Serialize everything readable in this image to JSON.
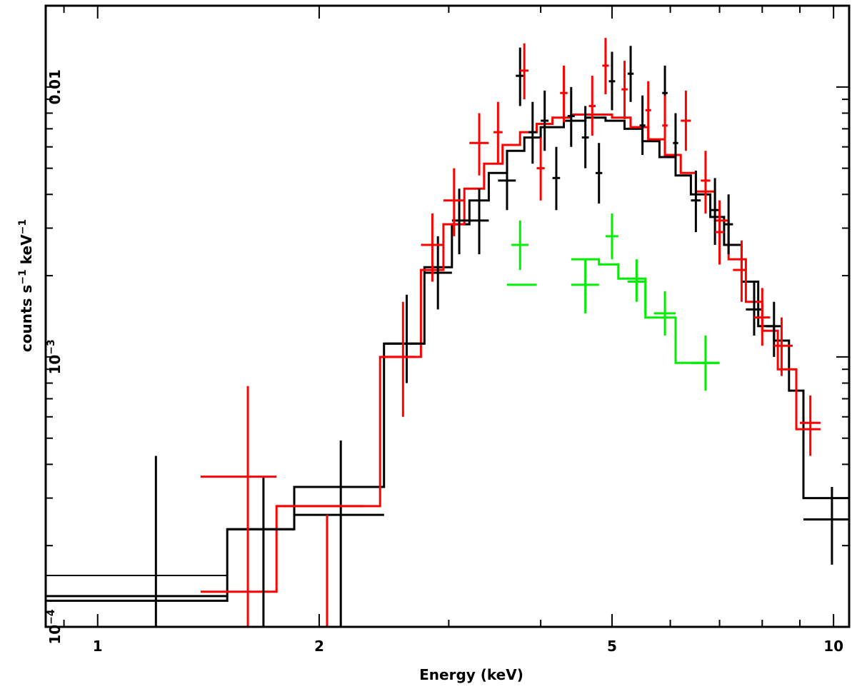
{
  "chart_data": {
    "type": "scatter",
    "title": "",
    "xlabel": "Energy (keV)",
    "ylabel_parts": {
      "a": "counts s",
      "b": "−1",
      "c": " keV",
      "d": "−1"
    },
    "x_scale": "log",
    "y_scale": "log",
    "xlim": [
      0.85,
      10.5
    ],
    "ylim": [
      0.0001,
      0.02
    ],
    "grid": false,
    "x_ticks": [
      {
        "value": 1,
        "label": "1"
      },
      {
        "value": 2,
        "label": "2"
      },
      {
        "value": 5,
        "label": "5"
      },
      {
        "value": 10,
        "label": "10"
      }
    ],
    "y_ticks": [
      {
        "value": 0.0001,
        "base": "10",
        "exp": "−4"
      },
      {
        "value": 0.001,
        "base": "10",
        "exp": "−3"
      },
      {
        "value": 0.01,
        "label": "0.01"
      }
    ],
    "series": [
      {
        "color": "#000000",
        "data": [
          {
            "x": 1.2,
            "xlo": 0.85,
            "xhi": 1.5,
            "y": 0.00013,
            "ylo": 0.0001,
            "yhi": 0.00043
          },
          {
            "x": 1.68,
            "xlo": 1.5,
            "xhi": 1.85,
            "y": 0.00023,
            "ylo": 0.0001,
            "yhi": 0.00036
          },
          {
            "x": 2.14,
            "xlo": 1.85,
            "xhi": 2.45,
            "y": 0.00026,
            "ylo": 0.0001,
            "yhi": 0.00049
          },
          {
            "x": 2.63,
            "xlo": 2.45,
            "xhi": 2.78,
            "y": 0.00112,
            "ylo": 0.0008,
            "yhi": 0.0017
          },
          {
            "x": 2.9,
            "xlo": 2.78,
            "xhi": 3.03,
            "y": 0.00205,
            "ylo": 0.0015,
            "yhi": 0.0028
          },
          {
            "x": 3.1,
            "xlo": 3.03,
            "xhi": 3.2,
            "y": 0.0032,
            "ylo": 0.0024,
            "yhi": 0.0042
          },
          {
            "x": 3.3,
            "xlo": 3.2,
            "xhi": 3.4,
            "y": 0.0032,
            "ylo": 0.0024,
            "yhi": 0.0042
          },
          {
            "x": 3.6,
            "xlo": 3.5,
            "xhi": 3.7,
            "y": 0.0045,
            "ylo": 0.0035,
            "yhi": 0.0058
          },
          {
            "x": 3.75,
            "xlo": 3.7,
            "xhi": 3.8,
            "y": 0.011,
            "ylo": 0.0085,
            "yhi": 0.014
          },
          {
            "x": 3.9,
            "xlo": 3.85,
            "xhi": 3.95,
            "y": 0.0068,
            "ylo": 0.0052,
            "yhi": 0.0088
          },
          {
            "x": 4.05,
            "xlo": 4.0,
            "xhi": 4.1,
            "y": 0.0075,
            "ylo": 0.0058,
            "yhi": 0.0097
          },
          {
            "x": 4.2,
            "xlo": 4.15,
            "xhi": 4.25,
            "y": 0.0046,
            "ylo": 0.0035,
            "yhi": 0.006
          },
          {
            "x": 4.4,
            "xlo": 4.35,
            "xhi": 4.45,
            "y": 0.0078,
            "ylo": 0.006,
            "yhi": 0.01
          },
          {
            "x": 4.6,
            "xlo": 4.55,
            "xhi": 4.65,
            "y": 0.0065,
            "ylo": 0.005,
            "yhi": 0.0085
          },
          {
            "x": 4.8,
            "xlo": 4.75,
            "xhi": 4.85,
            "y": 0.0048,
            "ylo": 0.0037,
            "yhi": 0.0062
          },
          {
            "x": 5.0,
            "xlo": 4.95,
            "xhi": 5.05,
            "y": 0.0105,
            "ylo": 0.0082,
            "yhi": 0.0135
          },
          {
            "x": 5.3,
            "xlo": 5.25,
            "xhi": 5.35,
            "y": 0.0112,
            "ylo": 0.0088,
            "yhi": 0.0142
          },
          {
            "x": 5.5,
            "xlo": 5.45,
            "xhi": 5.55,
            "y": 0.0072,
            "ylo": 0.0056,
            "yhi": 0.0093
          },
          {
            "x": 5.9,
            "xlo": 5.85,
            "xhi": 5.95,
            "y": 0.0095,
            "ylo": 0.0074,
            "yhi": 0.012
          },
          {
            "x": 6.1,
            "xlo": 6.05,
            "xhi": 6.15,
            "y": 0.0062,
            "ylo": 0.0048,
            "yhi": 0.008
          },
          {
            "x": 6.5,
            "xlo": 6.4,
            "xhi": 6.6,
            "y": 0.0038,
            "ylo": 0.0029,
            "yhi": 0.0049
          },
          {
            "x": 6.9,
            "xlo": 6.8,
            "xhi": 7.0,
            "y": 0.0035,
            "ylo": 0.0026,
            "yhi": 0.0046
          },
          {
            "x": 7.2,
            "xlo": 7.1,
            "xhi": 7.3,
            "y": 0.0031,
            "ylo": 0.0024,
            "yhi": 0.004
          },
          {
            "x": 7.8,
            "xlo": 7.6,
            "xhi": 8.0,
            "y": 0.0015,
            "ylo": 0.0012,
            "yhi": 0.0019
          },
          {
            "x": 8.3,
            "xlo": 8.1,
            "xhi": 8.5,
            "y": 0.0013,
            "ylo": 0.001,
            "yhi": 0.0016
          },
          {
            "x": 9.95,
            "xlo": 9.1,
            "xhi": 10.5,
            "y": 0.00025,
            "ylo": 0.00017,
            "yhi": 0.00033
          }
        ]
      },
      {
        "color": "#ff0000",
        "data": [
          {
            "x": 1.6,
            "xlo": 1.38,
            "xhi": 1.75,
            "y": 0.00036,
            "ylo": 0.0001,
            "yhi": 0.00078
          },
          {
            "x": 2.05,
            "xlo": 1.75,
            "xhi": 2.3,
            "y": 0.00028,
            "ylo": 0.0001,
            "yhi": 0.00026
          },
          {
            "x": 2.6,
            "xlo": 2.45,
            "xhi": 2.7,
            "y": 0.001,
            "ylo": 0.0006,
            "yhi": 0.0016
          },
          {
            "x": 2.85,
            "xlo": 2.75,
            "xhi": 2.95,
            "y": 0.0026,
            "ylo": 0.0019,
            "yhi": 0.0034
          },
          {
            "x": 3.05,
            "xlo": 2.95,
            "xhi": 3.15,
            "y": 0.0038,
            "ylo": 0.0028,
            "yhi": 0.005
          },
          {
            "x": 3.3,
            "xlo": 3.2,
            "xhi": 3.4,
            "y": 0.0062,
            "ylo": 0.0047,
            "yhi": 0.008
          },
          {
            "x": 3.5,
            "xlo": 3.45,
            "xhi": 3.55,
            "y": 0.0068,
            "ylo": 0.0052,
            "yhi": 0.0088
          },
          {
            "x": 3.8,
            "xlo": 3.75,
            "xhi": 3.85,
            "y": 0.0115,
            "ylo": 0.009,
            "yhi": 0.0145
          },
          {
            "x": 4.0,
            "xlo": 3.95,
            "xhi": 4.05,
            "y": 0.005,
            "ylo": 0.0038,
            "yhi": 0.0065
          },
          {
            "x": 4.3,
            "xlo": 4.25,
            "xhi": 4.35,
            "y": 0.0095,
            "ylo": 0.0074,
            "yhi": 0.012
          },
          {
            "x": 4.7,
            "xlo": 4.65,
            "xhi": 4.75,
            "y": 0.0085,
            "ylo": 0.0066,
            "yhi": 0.011
          },
          {
            "x": 4.9,
            "xlo": 4.85,
            "xhi": 4.95,
            "y": 0.012,
            "ylo": 0.0094,
            "yhi": 0.0152
          },
          {
            "x": 5.2,
            "xlo": 5.15,
            "xhi": 5.25,
            "y": 0.0098,
            "ylo": 0.0076,
            "yhi": 0.0125
          },
          {
            "x": 5.6,
            "xlo": 5.55,
            "xhi": 5.65,
            "y": 0.0082,
            "ylo": 0.0064,
            "yhi": 0.0105
          },
          {
            "x": 5.9,
            "xlo": 5.85,
            "xhi": 5.95,
            "y": 0.0072,
            "ylo": 0.0056,
            "yhi": 0.0093
          },
          {
            "x": 6.3,
            "xlo": 6.2,
            "xhi": 6.4,
            "y": 0.0075,
            "ylo": 0.0058,
            "yhi": 0.0097
          },
          {
            "x": 6.7,
            "xlo": 6.6,
            "xhi": 6.8,
            "y": 0.0045,
            "ylo": 0.0034,
            "yhi": 0.0058
          },
          {
            "x": 7.0,
            "xlo": 6.9,
            "xhi": 7.1,
            "y": 0.0029,
            "ylo": 0.0022,
            "yhi": 0.0038
          },
          {
            "x": 7.5,
            "xlo": 7.3,
            "xhi": 7.6,
            "y": 0.0021,
            "ylo": 0.0016,
            "yhi": 0.0027
          },
          {
            "x": 8.0,
            "xlo": 7.8,
            "xhi": 8.2,
            "y": 0.0014,
            "ylo": 0.0011,
            "yhi": 0.0018
          },
          {
            "x": 8.5,
            "xlo": 8.3,
            "xhi": 8.8,
            "y": 0.0011,
            "ylo": 0.00085,
            "yhi": 0.0014
          },
          {
            "x": 9.3,
            "xlo": 9.0,
            "xhi": 9.6,
            "y": 0.00057,
            "ylo": 0.00043,
            "yhi": 0.00072
          }
        ]
      },
      {
        "color": "#00ee00",
        "data": [
          {
            "x": 3.75,
            "xlo": 3.65,
            "xhi": 3.85,
            "y": 0.0026,
            "ylo": 0.0021,
            "yhi": 0.0032
          },
          {
            "x": 4.6,
            "xlo": 4.4,
            "xhi": 4.8,
            "y": 0.00185,
            "ylo": 0.00145,
            "yhi": 0.0023
          },
          {
            "x": 5.0,
            "xlo": 4.9,
            "xhi": 5.1,
            "y": 0.0028,
            "ylo": 0.0023,
            "yhi": 0.0034
          },
          {
            "x": 5.4,
            "xlo": 5.25,
            "xhi": 5.55,
            "y": 0.0019,
            "ylo": 0.0016,
            "yhi": 0.0023
          },
          {
            "x": 5.9,
            "xlo": 5.7,
            "xhi": 6.1,
            "y": 0.00145,
            "ylo": 0.0012,
            "yhi": 0.00175
          },
          {
            "x": 6.7,
            "xlo": 6.4,
            "xhi": 7.0,
            "y": 0.00095,
            "ylo": 0.00075,
            "yhi": 0.0012
          }
        ]
      }
    ],
    "model_steps": [
      {
        "color": "#000000",
        "points": [
          [
            0.85,
            0.000125
          ],
          [
            1.5,
            0.000125
          ],
          [
            1.5,
            0.00023
          ],
          [
            1.85,
            0.00023
          ],
          [
            1.85,
            0.00033
          ],
          [
            2.45,
            0.00033
          ],
          [
            2.45,
            0.00112
          ],
          [
            2.78,
            0.00112
          ],
          [
            2.78,
            0.00215
          ],
          [
            3.03,
            0.00215
          ],
          [
            3.03,
            0.0031
          ],
          [
            3.2,
            0.0031
          ],
          [
            3.2,
            0.0038
          ],
          [
            3.4,
            0.0038
          ],
          [
            3.4,
            0.0048
          ],
          [
            3.6,
            0.0048
          ],
          [
            3.6,
            0.0058
          ],
          [
            3.8,
            0.0058
          ],
          [
            3.8,
            0.0065
          ],
          [
            4.0,
            0.0065
          ],
          [
            4.0,
            0.0071
          ],
          [
            4.3,
            0.0071
          ],
          [
            4.3,
            0.0075
          ],
          [
            4.6,
            0.0075
          ],
          [
            4.6,
            0.0077
          ],
          [
            4.9,
            0.0077
          ],
          [
            4.9,
            0.0075
          ],
          [
            5.2,
            0.0075
          ],
          [
            5.2,
            0.007
          ],
          [
            5.5,
            0.007
          ],
          [
            5.5,
            0.0063
          ],
          [
            5.8,
            0.0063
          ],
          [
            5.8,
            0.0055
          ],
          [
            6.1,
            0.0055
          ],
          [
            6.1,
            0.0047
          ],
          [
            6.4,
            0.0047
          ],
          [
            6.4,
            0.004
          ],
          [
            6.8,
            0.004
          ],
          [
            6.8,
            0.0033
          ],
          [
            7.1,
            0.0033
          ],
          [
            7.1,
            0.0026
          ],
          [
            7.5,
            0.0026
          ],
          [
            7.5,
            0.0019
          ],
          [
            7.9,
            0.0019
          ],
          [
            7.9,
            0.0013
          ],
          [
            8.3,
            0.0013
          ],
          [
            8.3,
            0.00115
          ],
          [
            8.7,
            0.00115
          ],
          [
            8.7,
            0.00075
          ],
          [
            9.1,
            0.00075
          ],
          [
            9.1,
            0.0003
          ],
          [
            10.5,
            0.0003
          ]
        ]
      },
      {
        "color": "#000000",
        "points": [
          [
            0.85,
            0.000155
          ],
          [
            1.5,
            0.000155
          ],
          [
            1.5,
            0.00023
          ],
          [
            1.85,
            0.00023
          ],
          [
            1.85,
            0.00026
          ],
          [
            2.45,
            0.00026
          ]
        ]
      },
      {
        "color": "#ff0000",
        "points": [
          [
            1.38,
            0.000135
          ],
          [
            1.75,
            0.000135
          ],
          [
            1.75,
            0.00028
          ],
          [
            2.42,
            0.00028
          ],
          [
            2.42,
            0.001
          ],
          [
            2.75,
            0.001
          ],
          [
            2.75,
            0.0021
          ],
          [
            2.95,
            0.0021
          ],
          [
            2.95,
            0.0031
          ],
          [
            3.15,
            0.0031
          ],
          [
            3.15,
            0.0042
          ],
          [
            3.35,
            0.0042
          ],
          [
            3.35,
            0.0052
          ],
          [
            3.55,
            0.0052
          ],
          [
            3.55,
            0.0061
          ],
          [
            3.75,
            0.0061
          ],
          [
            3.75,
            0.0068
          ],
          [
            3.95,
            0.0068
          ],
          [
            3.95,
            0.0073
          ],
          [
            4.15,
            0.0073
          ],
          [
            4.15,
            0.0077
          ],
          [
            4.4,
            0.0077
          ],
          [
            4.4,
            0.0079
          ],
          [
            4.7,
            0.0079
          ],
          [
            4.7,
            0.0079
          ],
          [
            5.0,
            0.0079
          ],
          [
            5.0,
            0.0077
          ],
          [
            5.3,
            0.0077
          ],
          [
            5.3,
            0.0071
          ],
          [
            5.6,
            0.0071
          ],
          [
            5.6,
            0.0064
          ],
          [
            5.9,
            0.0064
          ],
          [
            5.9,
            0.0056
          ],
          [
            6.2,
            0.0056
          ],
          [
            6.2,
            0.0048
          ],
          [
            6.5,
            0.0048
          ],
          [
            6.5,
            0.0041
          ],
          [
            6.9,
            0.0041
          ],
          [
            6.9,
            0.0032
          ],
          [
            7.2,
            0.0032
          ],
          [
            7.2,
            0.0023
          ],
          [
            7.6,
            0.0023
          ],
          [
            7.6,
            0.0016
          ],
          [
            8.0,
            0.0016
          ],
          [
            8.0,
            0.00125
          ],
          [
            8.4,
            0.00125
          ],
          [
            8.4,
            0.0009
          ],
          [
            8.9,
            0.0009
          ],
          [
            8.9,
            0.00054
          ],
          [
            9.6,
            0.00054
          ]
        ]
      },
      {
        "color": "#00ee00",
        "points": [
          [
            4.4,
            0.0023
          ],
          [
            4.8,
            0.0023
          ],
          [
            4.8,
            0.0022
          ],
          [
            5.1,
            0.0022
          ],
          [
            5.1,
            0.00195
          ],
          [
            5.55,
            0.00195
          ],
          [
            5.55,
            0.0014
          ],
          [
            6.1,
            0.0014
          ],
          [
            6.1,
            0.00095
          ],
          [
            7.0,
            0.00095
          ]
        ]
      },
      {
        "color": "#00ee00",
        "points": [
          [
            3.6,
            0.00185
          ],
          [
            3.95,
            0.00185
          ]
        ]
      }
    ]
  }
}
